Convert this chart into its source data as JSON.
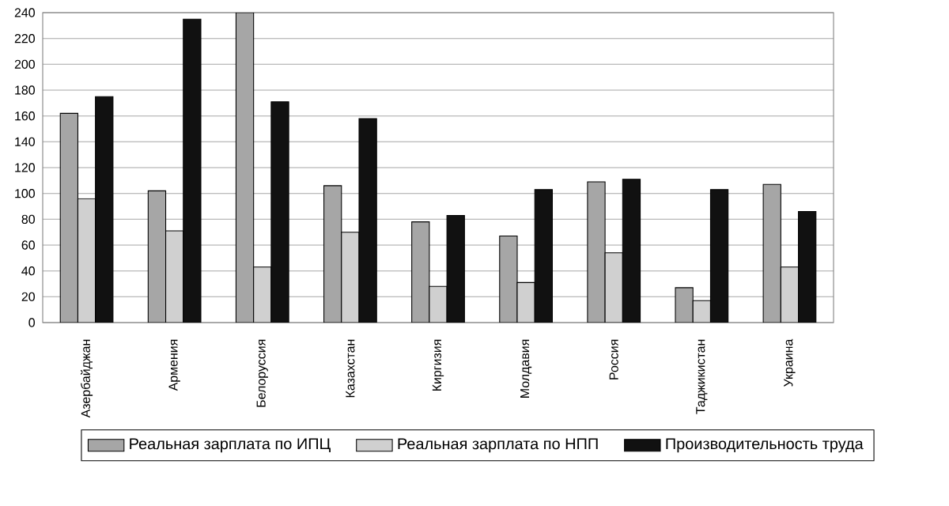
{
  "chart_data": {
    "type": "bar",
    "categories": [
      "Азербайджан",
      "Армения",
      "Белоруссия",
      "Казахстан",
      "Киргизия",
      "Молдавия",
      "Россия",
      "Таджикистан",
      "Украина"
    ],
    "series": [
      {
        "name": "Реальная зарплата по ИПЦ",
        "color": "#a6a6a6",
        "values": [
          162,
          102,
          240,
          106,
          78,
          67,
          109,
          27,
          107
        ]
      },
      {
        "name": "Реальная зарплата по НПП",
        "color": "#d0d0d0",
        "values": [
          96,
          71,
          43,
          70,
          28,
          31,
          54,
          17,
          43
        ]
      },
      {
        "name": "Производительность труда",
        "color": "#111111",
        "values": [
          175,
          235,
          171,
          158,
          83,
          103,
          111,
          103,
          86
        ]
      }
    ],
    "ylim": [
      0,
      240
    ],
    "yticks": [
      0,
      20,
      40,
      60,
      80,
      100,
      120,
      140,
      160,
      180,
      200,
      220,
      240
    ],
    "grid": "y",
    "legend": "bottom"
  }
}
